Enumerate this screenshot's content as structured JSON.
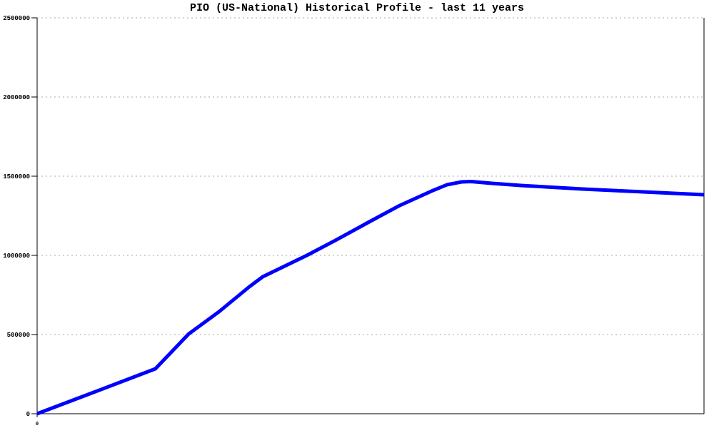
{
  "title": "PIO (US-National) Historical Profile - last 11 years",
  "colors": {
    "line": "#0000ff",
    "grid": "#a8a8a8",
    "axis": "#000000",
    "background": "#ffffff",
    "text": "#000000"
  },
  "axes": {
    "y_tick_labels": [
      "0",
      "500000",
      "1000000",
      "1500000",
      "2000000",
      "2500000"
    ],
    "y_tick_values": [
      0,
      500000,
      1000000,
      1500000,
      2000000,
      2500000
    ],
    "x_tick_labels": [
      "0"
    ],
    "x_tick_values": [
      0
    ]
  },
  "chart_data": {
    "type": "line",
    "title": "PIO (US-National) Historical Profile - last 11 years",
    "xlabel": "",
    "ylabel": "",
    "xlim": [
      0,
      11
    ],
    "ylim": [
      0,
      2500000
    ],
    "grid": true,
    "legend_position": "none",
    "x_tick_labels": [
      "0"
    ],
    "y_tick_labels": [
      "0",
      "500000",
      "1000000",
      "1500000",
      "2000000",
      "2500000"
    ],
    "series": [
      {
        "color": "#0000ff",
        "points": [
          {
            "x": 0.0,
            "y": 0
          },
          {
            "x": 1.0,
            "y": 145000
          },
          {
            "x": 1.95,
            "y": 284000
          },
          {
            "x": 2.5,
            "y": 504000
          },
          {
            "x": 3.0,
            "y": 644000
          },
          {
            "x": 3.5,
            "y": 802000
          },
          {
            "x": 3.72,
            "y": 865000
          },
          {
            "x": 4.45,
            "y": 1000000
          },
          {
            "x": 4.92,
            "y": 1095000
          },
          {
            "x": 5.5,
            "y": 1216000
          },
          {
            "x": 5.98,
            "y": 1315000
          },
          {
            "x": 6.5,
            "y": 1405000
          },
          {
            "x": 6.76,
            "y": 1446000
          },
          {
            "x": 7.0,
            "y": 1464000
          },
          {
            "x": 7.16,
            "y": 1466000
          },
          {
            "x": 7.5,
            "y": 1455000
          },
          {
            "x": 8.0,
            "y": 1441000
          },
          {
            "x": 9.0,
            "y": 1419000
          },
          {
            "x": 10.0,
            "y": 1401000
          },
          {
            "x": 11.0,
            "y": 1383000
          }
        ]
      }
    ]
  }
}
